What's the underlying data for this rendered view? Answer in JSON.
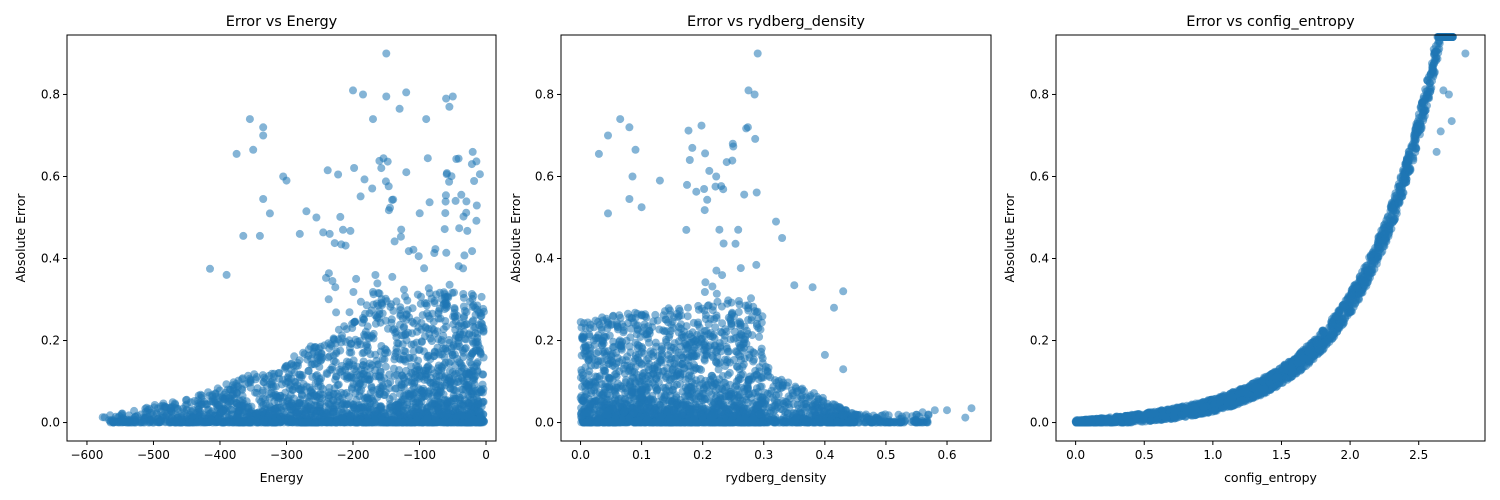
{
  "colors": {
    "point": "#1f77b4",
    "axis": "#000000",
    "background": "#ffffff"
  },
  "chart_data": [
    {
      "type": "scatter",
      "title": "Error vs Energy",
      "xlabel": "Energy",
      "ylabel": "Absolute Error",
      "xlim": [
        -630,
        15
      ],
      "ylim": [
        -0.045,
        0.945
      ],
      "xticks": [
        -600,
        -500,
        -400,
        -300,
        -200,
        -100,
        0
      ],
      "yticks": [
        0.0,
        0.2,
        0.4,
        0.6,
        0.8
      ],
      "xtick_labels": [
        "−600",
        "−500",
        "−400",
        "−300",
        "−200",
        "−100",
        "0"
      ],
      "ytick_labels": [
        "0.0",
        "0.2",
        "0.4",
        "0.6",
        "0.8"
      ],
      "grid": false,
      "outliers": [
        [
          -150,
          0.9
        ],
        [
          -355,
          0.74
        ],
        [
          -335,
          0.72
        ],
        [
          -335,
          0.7
        ],
        [
          -350,
          0.665
        ],
        [
          -375,
          0.655
        ],
        [
          -200,
          0.81
        ],
        [
          -185,
          0.8
        ],
        [
          -150,
          0.795
        ],
        [
          -120,
          0.805
        ],
        [
          -130,
          0.765
        ],
        [
          -60,
          0.79
        ],
        [
          -55,
          0.77
        ],
        [
          -50,
          0.795
        ],
        [
          -170,
          0.74
        ],
        [
          -90,
          0.74
        ],
        [
          -20,
          0.66
        ],
        [
          -305,
          0.6
        ],
        [
          -300,
          0.59
        ],
        [
          -335,
          0.545
        ],
        [
          -325,
          0.51
        ],
        [
          -270,
          0.515
        ],
        [
          -255,
          0.5
        ],
        [
          -280,
          0.46
        ],
        [
          -235,
          0.46
        ],
        [
          -215,
          0.47
        ],
        [
          -415,
          0.375
        ],
        [
          -390,
          0.36
        ],
        [
          -365,
          0.455
        ],
        [
          -340,
          0.455
        ]
      ]
    },
    {
      "type": "scatter",
      "title": "Error vs rydberg_density",
      "xlabel": "rydberg_density",
      "ylabel": "Absolute Error",
      "xlim": [
        -0.032,
        0.672
      ],
      "ylim": [
        -0.045,
        0.945
      ],
      "xticks": [
        0.0,
        0.1,
        0.2,
        0.3,
        0.4,
        0.5,
        0.6
      ],
      "yticks": [
        0.0,
        0.2,
        0.4,
        0.6,
        0.8
      ],
      "xtick_labels": [
        "0.0",
        "0.1",
        "0.2",
        "0.3",
        "0.4",
        "0.5",
        "0.6"
      ],
      "ytick_labels": [
        "0.0",
        "0.2",
        "0.4",
        "0.6",
        "0.8"
      ],
      "grid": false,
      "outliers": [
        [
          0.29,
          0.9
        ],
        [
          0.275,
          0.81
        ],
        [
          0.285,
          0.8
        ],
        [
          0.065,
          0.74
        ],
        [
          0.08,
          0.72
        ],
        [
          0.045,
          0.7
        ],
        [
          0.09,
          0.665
        ],
        [
          0.03,
          0.655
        ],
        [
          0.085,
          0.6
        ],
        [
          0.13,
          0.59
        ],
        [
          0.08,
          0.545
        ],
        [
          0.1,
          0.525
        ],
        [
          0.045,
          0.51
        ],
        [
          0.43,
          0.32
        ],
        [
          0.6,
          0.03
        ],
        [
          0.64,
          0.035
        ],
        [
          0.63,
          0.012
        ],
        [
          0.58,
          0.03
        ],
        [
          0.56,
          0.025
        ],
        [
          0.38,
          0.33
        ],
        [
          0.35,
          0.335
        ],
        [
          0.415,
          0.28
        ],
        [
          0.4,
          0.165
        ],
        [
          0.43,
          0.13
        ],
        [
          0.32,
          0.49
        ],
        [
          0.33,
          0.45
        ]
      ]
    },
    {
      "type": "scatter",
      "title": "Error vs config_entropy",
      "xlabel": "config_entropy",
      "ylabel": "Absolute Error",
      "xlim": [
        -0.143,
        2.983
      ],
      "ylim": [
        -0.045,
        0.945
      ],
      "xticks": [
        0.0,
        0.5,
        1.0,
        1.5,
        2.0,
        2.5
      ],
      "yticks": [
        0.0,
        0.2,
        0.4,
        0.6,
        0.8
      ],
      "xtick_labels": [
        "0.0",
        "0.5",
        "1.0",
        "1.5",
        "2.0",
        "2.5"
      ],
      "ytick_labels": [
        "0.0",
        "0.2",
        "0.4",
        "0.6",
        "0.8"
      ],
      "grid": false,
      "outliers": [
        [
          2.84,
          0.9
        ],
        [
          2.72,
          0.8
        ],
        [
          2.68,
          0.81
        ],
        [
          2.74,
          0.735
        ],
        [
          2.63,
          0.66
        ],
        [
          2.66,
          0.71
        ]
      ]
    }
  ]
}
